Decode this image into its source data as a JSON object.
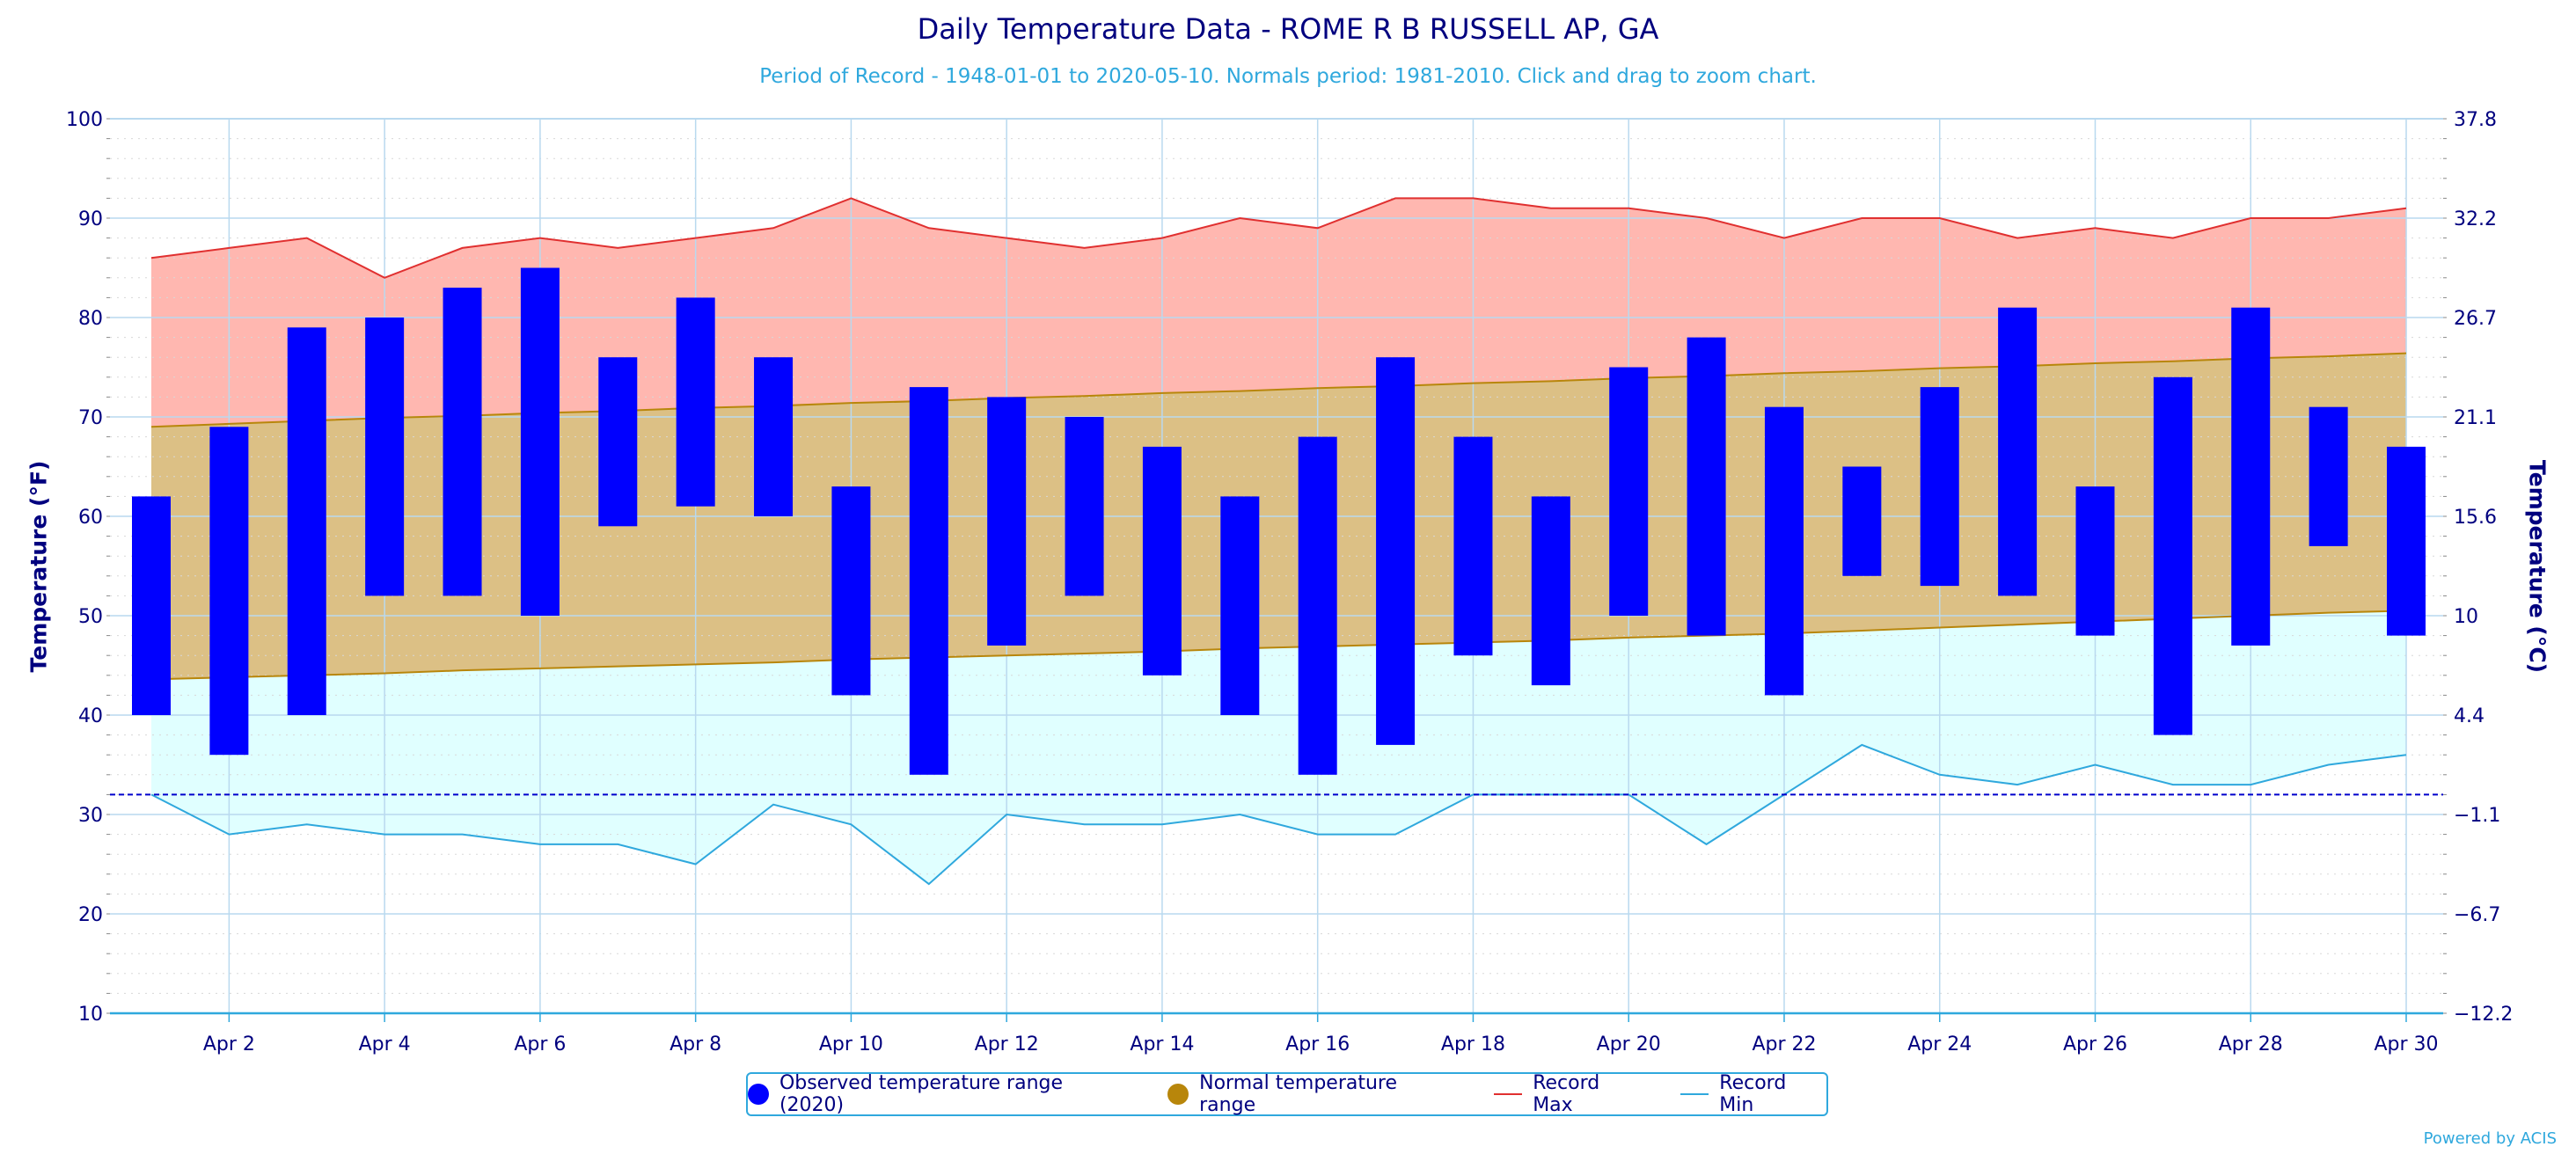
{
  "chart_data": {
    "type": "bar",
    "title": "Daily Temperature Data - ROME R B RUSSELL AP, GA",
    "subtitle": "Period of Record - 1948-01-01 to 2020-05-10. Normals period: 1981-2010. Click and drag to zoom chart.",
    "ylabel": "Temperature (°F)",
    "ylabel_right": "Temperature (°C)",
    "ylim": [
      10,
      100
    ],
    "y_ticks": [
      "10",
      "20",
      "30",
      "40",
      "50",
      "60",
      "70",
      "80",
      "90",
      "100"
    ],
    "y_ticks_right": [
      "−12.2",
      "−6.7",
      "−1.1",
      "4.4",
      "10",
      "15.6",
      "21.1",
      "26.7",
      "32.2",
      "37.8"
    ],
    "x_day_range": [
      1,
      30
    ],
    "x_ticks": [
      "Apr 2",
      "Apr 4",
      "Apr 6",
      "Apr 8",
      "Apr 10",
      "Apr 12",
      "Apr 14",
      "Apr 16",
      "Apr 18",
      "Apr 20",
      "Apr 22",
      "Apr 24",
      "Apr 26",
      "Apr 28",
      "Apr 30"
    ],
    "x_tick_days": [
      2,
      4,
      6,
      8,
      10,
      12,
      14,
      16,
      18,
      20,
      22,
      24,
      26,
      28,
      30
    ],
    "freezing_line": 32,
    "grid": true,
    "legend_position": "bottom",
    "series": [
      {
        "name": "Observed temperature range (2020)",
        "type": "range-bar",
        "color": "#0000ff",
        "low": [
          40,
          36,
          40,
          52,
          52,
          50,
          59,
          61,
          60,
          42,
          34,
          47,
          52,
          44,
          40,
          34,
          37,
          46,
          43,
          50,
          48,
          42,
          54,
          53,
          52,
          48,
          38,
          47,
          57,
          48
        ],
        "high": [
          62,
          69,
          79,
          80,
          83,
          85,
          76,
          82,
          76,
          63,
          73,
          72,
          70,
          67,
          62,
          68,
          76,
          68,
          62,
          75,
          78,
          71,
          65,
          73,
          81,
          63,
          74,
          81,
          71,
          67
        ]
      },
      {
        "name": "Normal temperature range",
        "type": "range-area",
        "color": "#b8860b",
        "low": [
          43.6,
          43.8,
          44.0,
          44.2,
          44.5,
          44.7,
          44.9,
          45.1,
          45.3,
          45.6,
          45.8,
          46.0,
          46.2,
          46.4,
          46.7,
          46.9,
          47.1,
          47.3,
          47.5,
          47.8,
          48.0,
          48.2,
          48.5,
          48.8,
          49.1,
          49.4,
          49.7,
          50.0,
          50.3,
          50.5
        ],
        "high": [
          69.0,
          69.3,
          69.6,
          69.9,
          70.1,
          70.4,
          70.6,
          70.9,
          71.1,
          71.4,
          71.6,
          71.9,
          72.1,
          72.4,
          72.6,
          72.9,
          73.1,
          73.4,
          73.6,
          73.9,
          74.1,
          74.4,
          74.6,
          74.9,
          75.1,
          75.4,
          75.6,
          75.9,
          76.1,
          76.4
        ]
      },
      {
        "name": "Record Max",
        "type": "line",
        "color": "#e03030",
        "fill": "#ffb7b0",
        "values": [
          86,
          87,
          88,
          84,
          87,
          88,
          87,
          88,
          89,
          92,
          89,
          88,
          87,
          88,
          90,
          89,
          92,
          92,
          91,
          91,
          90,
          88,
          90,
          90,
          88,
          89,
          88,
          90,
          90,
          91
        ]
      },
      {
        "name": "Record Min",
        "type": "line",
        "color": "#2fa8dd",
        "fill": "#e0ffff",
        "values": [
          32,
          28,
          29,
          28,
          28,
          27,
          27,
          25,
          31,
          29,
          23,
          30,
          29,
          29,
          30,
          28,
          28,
          32,
          32,
          32,
          27,
          32,
          37,
          34,
          33,
          35,
          33,
          33,
          35,
          36
        ]
      }
    ]
  },
  "credit": "Powered by ACIS",
  "colors": {
    "title": "#00007f",
    "subtitle": "#2fa8dd",
    "grid": "#b9d9ef",
    "freezing": "#0000cc"
  }
}
